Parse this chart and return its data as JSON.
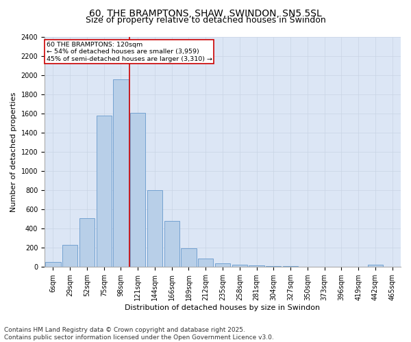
{
  "title": "60, THE BRAMPTONS, SHAW, SWINDON, SN5 5SL",
  "subtitle": "Size of property relative to detached houses in Swindon",
  "xlabel": "Distribution of detached houses by size in Swindon",
  "ylabel": "Number of detached properties",
  "categories": [
    "6sqm",
    "29sqm",
    "52sqm",
    "75sqm",
    "98sqm",
    "121sqm",
    "144sqm",
    "166sqm",
    "189sqm",
    "212sqm",
    "235sqm",
    "258sqm",
    "281sqm",
    "304sqm",
    "327sqm",
    "350sqm",
    "373sqm",
    "396sqm",
    "419sqm",
    "442sqm",
    "465sqm"
  ],
  "values": [
    55,
    230,
    510,
    1580,
    1960,
    1610,
    800,
    480,
    195,
    90,
    40,
    25,
    20,
    10,
    8,
    5,
    4,
    3,
    3,
    25,
    3
  ],
  "bar_color": "#b8cfe8",
  "bar_edge_color": "#6699cc",
  "vline_color": "#cc0000",
  "property_label": "60 THE BRAMPTONS: 120sqm",
  "annotation_line1": "← 54% of detached houses are smaller (3,959)",
  "annotation_line2": "45% of semi-detached houses are larger (3,310) →",
  "annotation_box_color": "#cc0000",
  "ylim": [
    0,
    2400
  ],
  "yticks": [
    0,
    200,
    400,
    600,
    800,
    1000,
    1200,
    1400,
    1600,
    1800,
    2000,
    2200,
    2400
  ],
  "grid_color": "#c8d4e4",
  "background_color": "#dce6f5",
  "footer_line1": "Contains HM Land Registry data © Crown copyright and database right 2025.",
  "footer_line2": "Contains public sector information licensed under the Open Government Licence v3.0.",
  "title_fontsize": 10,
  "subtitle_fontsize": 9,
  "axis_label_fontsize": 8,
  "tick_fontsize": 7,
  "footer_fontsize": 6.5
}
